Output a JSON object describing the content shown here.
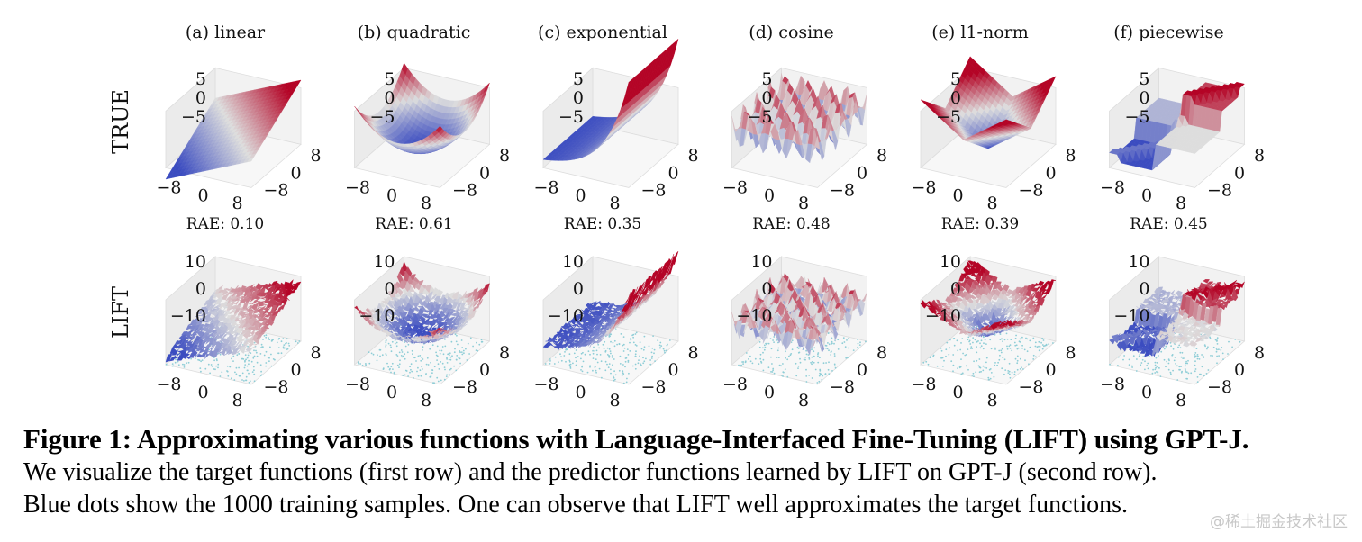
{
  "figure": {
    "row_labels": [
      "TRUE",
      "LIFT"
    ],
    "panels": [
      {
        "title": "(a) linear",
        "fn": "linear",
        "rae": "RAE: 0.10"
      },
      {
        "title": "(b) quadratic",
        "fn": "quadratic",
        "rae": "RAE: 0.61"
      },
      {
        "title": "(c) exponential",
        "fn": "exponential",
        "rae": "RAE: 0.35"
      },
      {
        "title": "(d) cosine",
        "fn": "cosine",
        "rae": "RAE: 0.48"
      },
      {
        "title": "(e) l1-norm",
        "fn": "l1norm",
        "rae": "RAE: 0.39"
      },
      {
        "title": "(f) piecewise",
        "fn": "piecewise",
        "rae": "RAE: 0.45"
      }
    ],
    "top_z_ticks": [
      "5",
      "0",
      "−5"
    ],
    "bottom_z_ticks": [
      "10",
      "0",
      "−10"
    ],
    "x_ticks": [
      "−8",
      "0",
      "8"
    ],
    "y_ticks": [
      "8",
      "0",
      "−8"
    ],
    "colors": {
      "low": "#3b4cc0",
      "mid": "#dddddd",
      "high": "#b40426",
      "samples": "#8ecdd6"
    }
  },
  "caption": {
    "title": "Figure 1: Approximating various functions with Language-Interfaced Fine-Tuning (LIFT) using GPT-J.",
    "line1": "We visualize the target functions (first row) and the predictor functions learned by LIFT on GPT-J (second row).",
    "line2": "Blue dots show the 1000 training samples. One can observe that LIFT well approximates the target functions."
  },
  "watermark": "@稀土掘金技术社区"
}
